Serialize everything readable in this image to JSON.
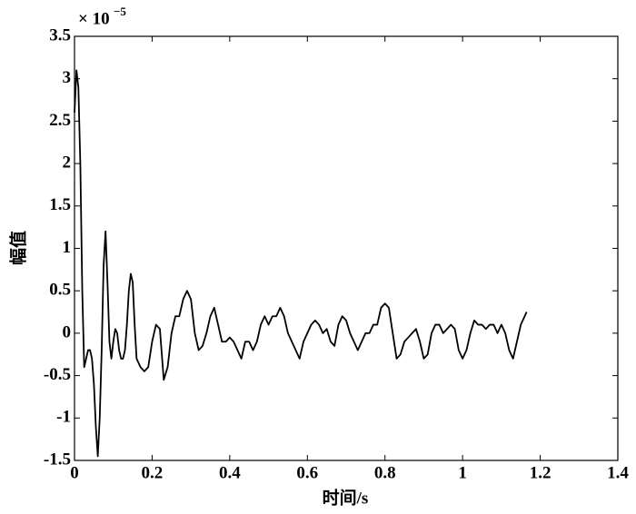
{
  "chart_data": {
    "type": "line",
    "x_label": "时间/s",
    "y_label": "幅值",
    "multiplier": "× 10",
    "multiplier_exponent": "−5",
    "xlim": [
      0,
      1.4
    ],
    "xticks": [
      0,
      0.2,
      0.4,
      0.6,
      0.8,
      1,
      1.2,
      1.4
    ],
    "ylim": [
      -1.5,
      3.5
    ],
    "yticks": [
      -1.5,
      -1,
      -0.5,
      0,
      0.5,
      1,
      1.5,
      2,
      2.5,
      3,
      3.5
    ],
    "grid": false,
    "series": [
      {
        "color": "#000000",
        "x": [
          0,
          0.005,
          0.01,
          0.015,
          0.02,
          0.025,
          0.03,
          0.035,
          0.04,
          0.045,
          0.05,
          0.055,
          0.06,
          0.065,
          0.07,
          0.075,
          0.08,
          0.085,
          0.09,
          0.095,
          0.1,
          0.105,
          0.11,
          0.115,
          0.12,
          0.125,
          0.13,
          0.135,
          0.14,
          0.145,
          0.15,
          0.155,
          0.16,
          0.17,
          0.18,
          0.19,
          0.2,
          0.21,
          0.22,
          0.23,
          0.24,
          0.25,
          0.26,
          0.27,
          0.28,
          0.29,
          0.3,
          0.31,
          0.32,
          0.33,
          0.34,
          0.35,
          0.36,
          0.37,
          0.38,
          0.39,
          0.4,
          0.41,
          0.42,
          0.43,
          0.44,
          0.45,
          0.46,
          0.47,
          0.48,
          0.49,
          0.5,
          0.51,
          0.52,
          0.53,
          0.54,
          0.55,
          0.56,
          0.57,
          0.58,
          0.59,
          0.6,
          0.61,
          0.62,
          0.63,
          0.64,
          0.65,
          0.66,
          0.67,
          0.68,
          0.69,
          0.7,
          0.71,
          0.72,
          0.73,
          0.74,
          0.75,
          0.76,
          0.77,
          0.78,
          0.79,
          0.8,
          0.81,
          0.82,
          0.83,
          0.84,
          0.85,
          0.86,
          0.87,
          0.88,
          0.89,
          0.9,
          0.91,
          0.92,
          0.93,
          0.94,
          0.95,
          0.96,
          0.97,
          0.98,
          0.99,
          1,
          1.01,
          1.02,
          1.03,
          1.04,
          1.05,
          1.06,
          1.07,
          1.08,
          1.09,
          1.1,
          1.11,
          1.12,
          1.13,
          1.14,
          1.15,
          1.16,
          1.165
        ],
        "values": [
          2.6,
          3.1,
          2.9,
          2.0,
          0.5,
          -0.4,
          -0.3,
          -0.2,
          -0.2,
          -0.3,
          -0.6,
          -1.1,
          -1.45,
          -1.0,
          -0.2,
          0.8,
          1.2,
          0.6,
          -0.1,
          -0.3,
          -0.1,
          0.05,
          0.0,
          -0.2,
          -0.3,
          -0.3,
          -0.2,
          0.1,
          0.5,
          0.7,
          0.6,
          0.1,
          -0.3,
          -0.4,
          -0.45,
          -0.4,
          -0.1,
          0.1,
          0.05,
          -0.55,
          -0.4,
          0.0,
          0.2,
          0.2,
          0.4,
          0.5,
          0.4,
          0.0,
          -0.2,
          -0.15,
          0.0,
          0.2,
          0.3,
          0.1,
          -0.1,
          -0.1,
          -0.05,
          -0.1,
          -0.2,
          -0.3,
          -0.1,
          -0.1,
          -0.2,
          -0.1,
          0.1,
          0.2,
          0.1,
          0.2,
          0.2,
          0.3,
          0.2,
          0.0,
          -0.1,
          -0.2,
          -0.3,
          -0.1,
          0.0,
          0.1,
          0.15,
          0.1,
          0.0,
          0.05,
          -0.1,
          -0.15,
          0.1,
          0.2,
          0.15,
          0.0,
          -0.1,
          -0.2,
          -0.1,
          0.0,
          0.0,
          0.1,
          0.1,
          0.3,
          0.35,
          0.3,
          0.0,
          -0.3,
          -0.25,
          -0.1,
          -0.05,
          0.0,
          0.05,
          -0.1,
          -0.3,
          -0.25,
          0.0,
          0.1,
          0.1,
          0.0,
          0.05,
          0.1,
          0.05,
          -0.2,
          -0.3,
          -0.2,
          0.0,
          0.15,
          0.1,
          0.1,
          0.05,
          0.1,
          0.1,
          0.0,
          0.1,
          0.0,
          -0.2,
          -0.3,
          -0.1,
          0.1,
          0.2,
          0.25
        ]
      }
    ]
  }
}
